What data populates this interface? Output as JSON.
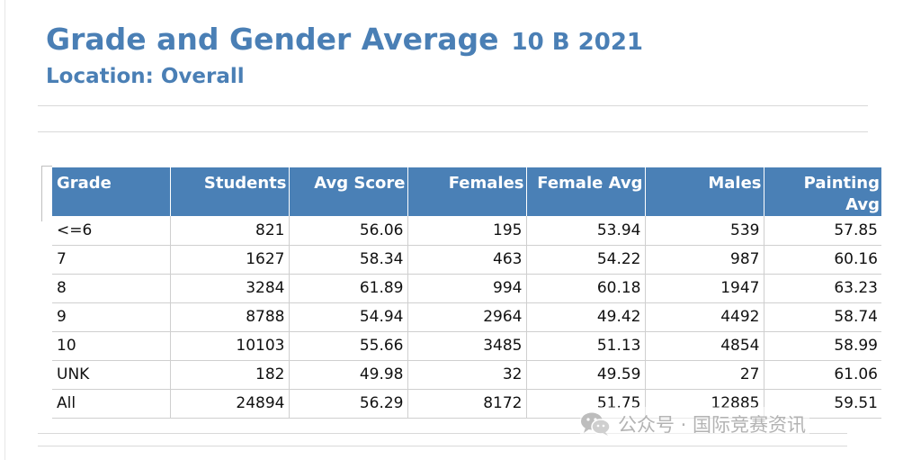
{
  "report": {
    "title": "Grade and Gender Average",
    "subtitle": "10 B 2021",
    "location": "Location: Overall"
  },
  "table": {
    "headers": [
      "Grade",
      "Students",
      "Avg Score",
      "Females",
      "Female Avg",
      "Males",
      "Painting Avg"
    ],
    "rows": [
      [
        "<=6",
        "821",
        "56.06",
        "195",
        "53.94",
        "539",
        "57.85"
      ],
      [
        "7",
        "1627",
        "58.34",
        "463",
        "54.22",
        "987",
        "60.16"
      ],
      [
        "8",
        "3284",
        "61.89",
        "994",
        "60.18",
        "1947",
        "63.23"
      ],
      [
        "9",
        "8788",
        "54.94",
        "2964",
        "49.42",
        "4492",
        "58.74"
      ],
      [
        "10",
        "10103",
        "55.66",
        "3485",
        "51.13",
        "4854",
        "58.99"
      ],
      [
        "UNK",
        "182",
        "49.98",
        "32",
        "49.59",
        "27",
        "61.06"
      ],
      [
        "All",
        "24894",
        "56.29",
        "8172",
        "51.75",
        "12885",
        "59.51"
      ]
    ]
  },
  "watermark": {
    "text": "公众号 · 国际竞赛资讯",
    "icon": "wechat-icon"
  },
  "colors": {
    "accent": "#4a7fb5",
    "header_bg": "#4a80b6",
    "header_text": "#ffffff",
    "grid_line": "#cfcfcf"
  }
}
